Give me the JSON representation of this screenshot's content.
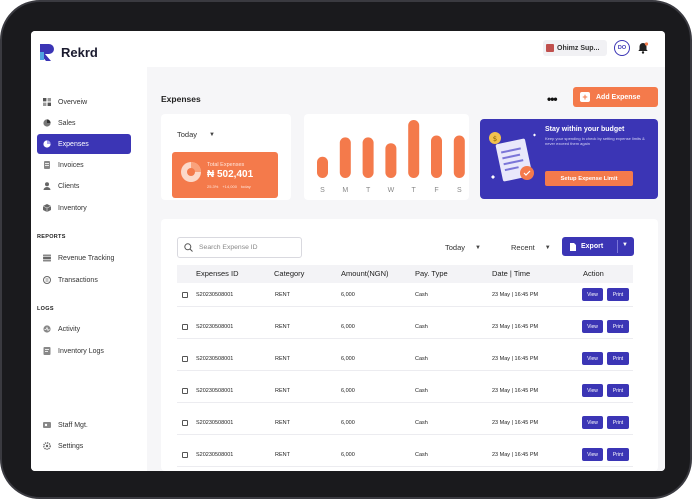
{
  "app": {
    "name": "Rekrd"
  },
  "header": {
    "user_name": "Ohimz Sup...",
    "avatar_initials": "DO"
  },
  "sidebar": {
    "items": [
      {
        "label": "Overveiw",
        "icon": "grid-icon",
        "active": false
      },
      {
        "label": "Sales",
        "icon": "chart-icon",
        "active": false
      },
      {
        "label": "Expenses",
        "icon": "pie-icon",
        "active": true
      },
      {
        "label": "Invoices",
        "icon": "invoice-icon",
        "active": false
      },
      {
        "label": "Clients",
        "icon": "user-icon",
        "active": false
      },
      {
        "label": "Inventory",
        "icon": "box-icon",
        "active": false
      }
    ],
    "reports_label": "REPORTS",
    "reports": [
      {
        "label": "Revenue Tracking",
        "icon": "stack-icon"
      },
      {
        "label": "Transactions",
        "icon": "exchange-icon"
      }
    ],
    "logs_label": "LOGS",
    "logs": [
      {
        "label": "Activity",
        "icon": "activity-icon"
      },
      {
        "label": "Inventory Logs",
        "icon": "log-icon"
      }
    ],
    "bottom": [
      {
        "label": "Staff Mgt.",
        "icon": "staff-icon"
      },
      {
        "label": "Settings",
        "icon": "gear-icon"
      }
    ]
  },
  "main": {
    "title": "Expenses",
    "add_button": "Add Expense",
    "summary": {
      "period": "Today",
      "total_label": "Total Expenses",
      "total_value": "₦ 502,401",
      "change": "25.3%",
      "change_amount": "+14,000",
      "change_period": "today"
    },
    "chart_data": {
      "type": "bar",
      "categories": [
        "S",
        "M",
        "T",
        "W",
        "T",
        "F",
        "S"
      ],
      "values": [
        22,
        42,
        42,
        36,
        60,
        44,
        44
      ],
      "ylim": [
        0,
        60
      ]
    },
    "promo": {
      "title": "Stay within your budget",
      "text": "Keep your spending in check by setting expense limits & never exceed them again",
      "button": "Setup Expense Limit"
    },
    "table": {
      "search_placeholder": "Search Expense ID",
      "filter_period": "Today",
      "filter_sort": "Recent",
      "export_label": "Export",
      "columns": [
        "Expenses ID",
        "Category",
        "Amount(NGN)",
        "Pay. Type",
        "Date | Time",
        "Action"
      ],
      "view_label": "View",
      "print_label": "Print",
      "rows": [
        {
          "id": "S20230508001",
          "category": "RENT",
          "amount": "6,000",
          "pay_type": "Cash",
          "datetime": "23 May | 16:45 PM"
        },
        {
          "id": "S20230508001",
          "category": "RENT",
          "amount": "6,000",
          "pay_type": "Cash",
          "datetime": "23 May | 16:45 PM"
        },
        {
          "id": "S20230508001",
          "category": "RENT",
          "amount": "6,000",
          "pay_type": "Cash",
          "datetime": "23 May | 16:45 PM"
        },
        {
          "id": "S20230508001",
          "category": "RENT",
          "amount": "6,000",
          "pay_type": "Cash",
          "datetime": "23 May | 16:45 PM"
        },
        {
          "id": "S20230508001",
          "category": "RENT",
          "amount": "6,000",
          "pay_type": "Cash",
          "datetime": "23 May | 16:45 PM"
        },
        {
          "id": "S20230508001",
          "category": "RENT",
          "amount": "6,000",
          "pay_type": "Cash",
          "datetime": "23 May | 16:45 PM"
        }
      ]
    }
  },
  "colors": {
    "primary": "#3b35b5",
    "accent": "#f47a4b"
  }
}
